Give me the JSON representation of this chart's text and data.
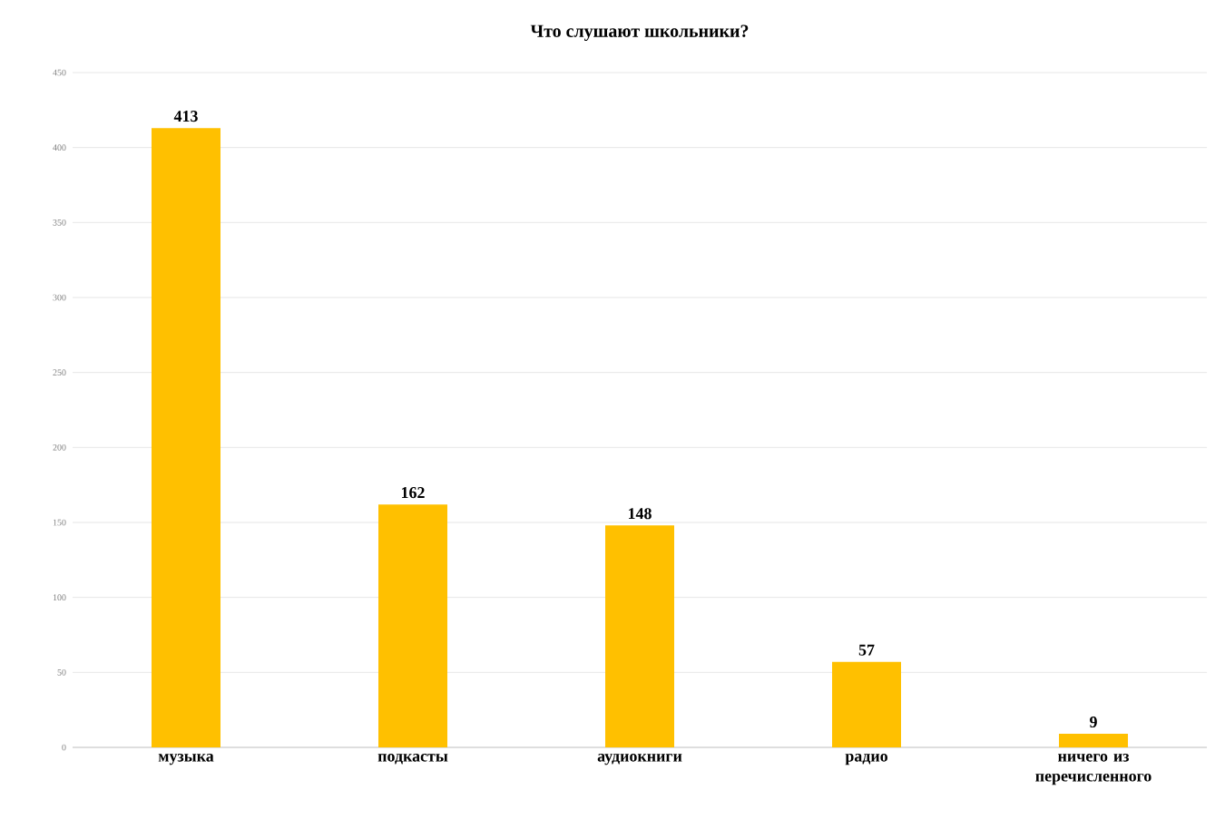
{
  "chart_data": {
    "type": "bar",
    "title": "Что слушают школьники?",
    "categories": [
      "музыка",
      "подкасты",
      "аудиокниги",
      "радио",
      "ничего из перечисленного"
    ],
    "values": [
      413,
      162,
      148,
      57,
      9
    ],
    "color": "#ffc000",
    "ylim": [
      0,
      450
    ],
    "yticks": [
      0,
      50,
      100,
      150,
      200,
      250,
      300,
      350,
      400,
      450
    ],
    "grid": "y",
    "data_labels": true
  }
}
